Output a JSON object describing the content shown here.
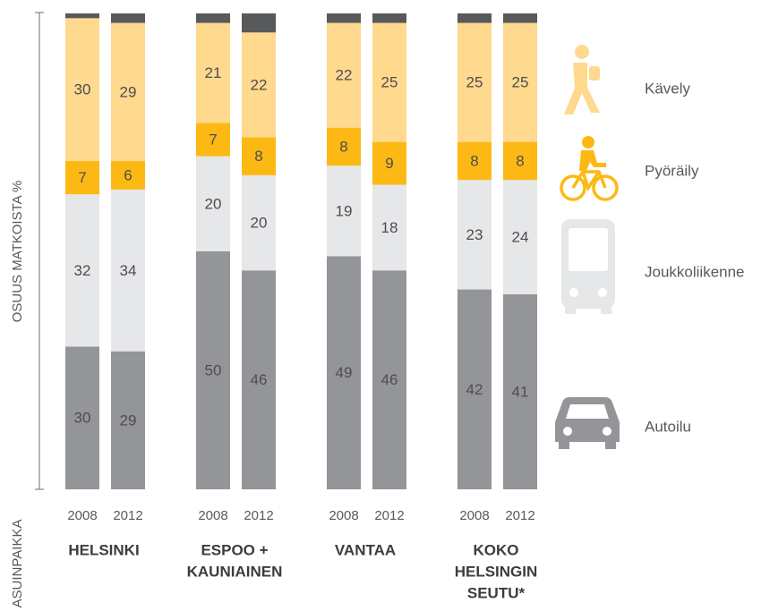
{
  "chart_data": {
    "type": "stacked-bar",
    "y_label": "OSUUS MATKOISTA %",
    "x_label": "ASUINPAIKKA",
    "categories": [
      "2008",
      "2012",
      "2008",
      "2012",
      "2008",
      "2012",
      "2008",
      "2012"
    ],
    "group_labels": [
      [
        "HELSINKI"
      ],
      [
        "ESPOO +",
        "KAUNIAINEN"
      ],
      [
        "VANTAA"
      ],
      [
        "KOKO",
        "HELSINGIN",
        "SEUTU*"
      ]
    ],
    "ylim": [
      0,
      100
    ],
    "series": [
      {
        "name": "Autoilu",
        "color": "#939598",
        "values": [
          30,
          29,
          50,
          46,
          49,
          46,
          42,
          41
        ]
      },
      {
        "name": "Joukkoliikenne",
        "color": "#e6e7e8",
        "values": [
          32,
          34,
          20,
          20,
          19,
          18,
          23,
          24
        ]
      },
      {
        "name": "Pyöräily",
        "color": "#fdb913",
        "values": [
          7,
          6,
          7,
          8,
          8,
          9,
          8,
          8
        ]
      },
      {
        "name": "Kävely",
        "color": "#fed98e",
        "values": [
          30,
          29,
          21,
          22,
          22,
          25,
          25,
          25
        ]
      },
      {
        "color": "#58595b",
        "values": [
          1,
          2,
          2,
          4,
          2,
          2,
          2,
          2
        ]
      }
    ]
  }
}
